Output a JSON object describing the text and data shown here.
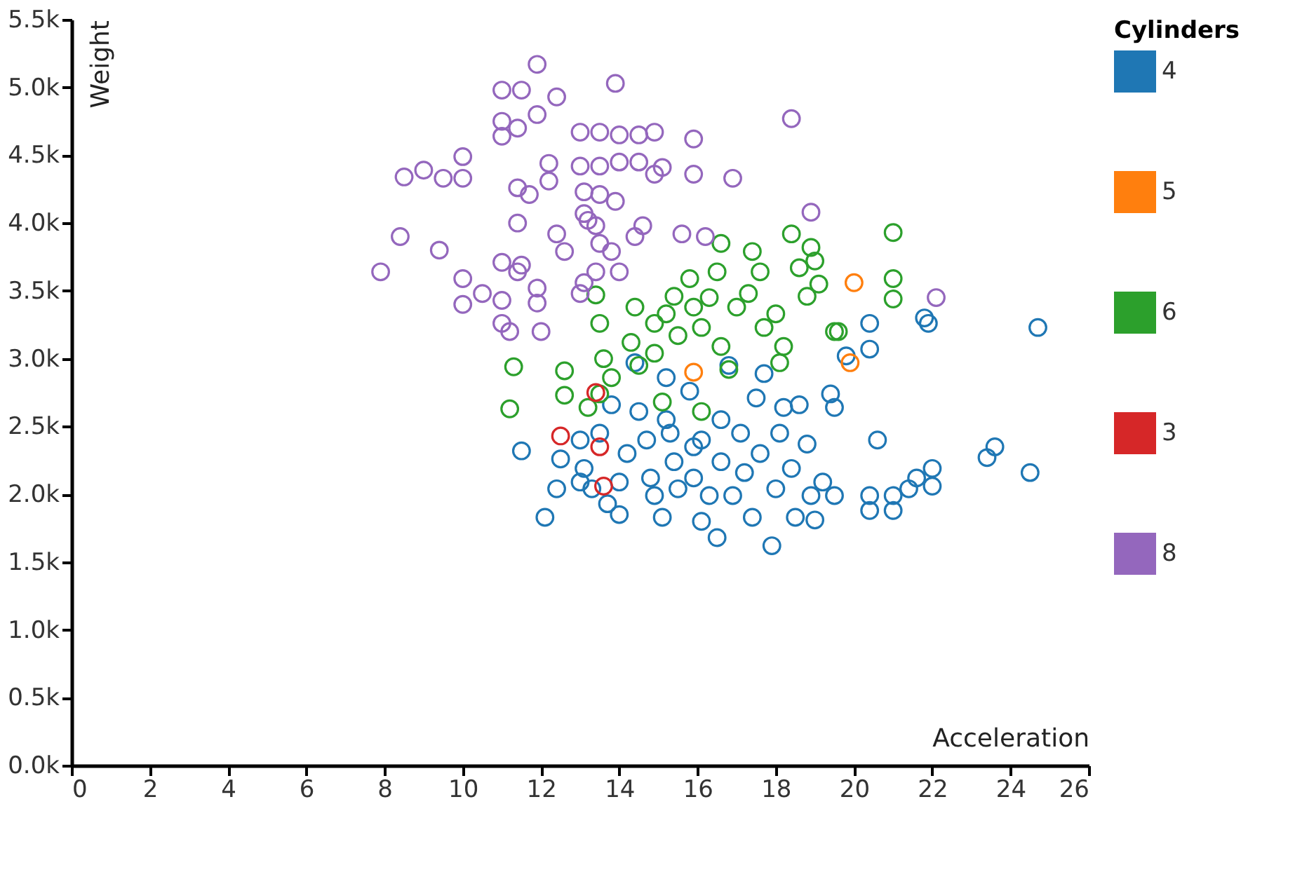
{
  "chart_data": {
    "type": "scatter",
    "xlabel": "Acceleration",
    "ylabel": "Weight",
    "legend_title": "Cylinders",
    "legend": "top right",
    "grid": false,
    "marker": "circle",
    "xlim": [
      0,
      26
    ],
    "xticks": [
      0,
      2,
      4,
      6,
      8,
      10,
      12,
      14,
      16,
      18,
      20,
      22,
      24,
      26
    ],
    "ylim": [
      0,
      5500
    ],
    "yticks": [
      {
        "value": 0,
        "label": "0.0k"
      },
      {
        "value": 500,
        "label": "0.5k"
      },
      {
        "value": 1000,
        "label": "1.0k"
      },
      {
        "value": 1500,
        "label": "1.5k"
      },
      {
        "value": 2000,
        "label": "2.0k"
      },
      {
        "value": 2500,
        "label": "2.5k"
      },
      {
        "value": 3000,
        "label": "3.0k"
      },
      {
        "value": 3500,
        "label": "3.5k"
      },
      {
        "value": 4000,
        "label": "4.0k"
      },
      {
        "value": 4500,
        "label": "4.5k"
      },
      {
        "value": 5000,
        "label": "5.0k"
      },
      {
        "value": 5500,
        "label": "5.5k"
      }
    ],
    "series": [
      {
        "name": "4",
        "color": "#1f77b4",
        "x": [
          11.5,
          12.1,
          12.5,
          12.4,
          13.0,
          13.1,
          13.7,
          14.0,
          14.0,
          14.2,
          14.4,
          14.5,
          14.7,
          14.8,
          14.9,
          15.1,
          15.2,
          15.3,
          15.4,
          15.5,
          15.8,
          15.9,
          15.9,
          16.1,
          16.3,
          16.5,
          16.6,
          16.6,
          16.8,
          16.9,
          17.1,
          17.2,
          17.4,
          17.5,
          17.6,
          17.7,
          17.9,
          18.0,
          18.1,
          18.2,
          18.4,
          18.5,
          18.6,
          18.8,
          18.9,
          19.0,
          19.2,
          19.4,
          19.5,
          19.5,
          19.8,
          20.4,
          20.4,
          20.4,
          20.6,
          20.4,
          21.0,
          21.0,
          21.4,
          21.6,
          21.8,
          21.9,
          22.0,
          22.0,
          23.4,
          23.6,
          24.5,
          24.7,
          13.5,
          13.8,
          15.2,
          16.1,
          13.3,
          13.0
        ],
        "values": [
          2320,
          1830,
          2260,
          2040,
          2400,
          2190,
          1930,
          2090,
          1850,
          2300,
          2970,
          2610,
          2400,
          2120,
          1990,
          1830,
          2860,
          2450,
          2240,
          2040,
          2760,
          2350,
          2120,
          1800,
          1990,
          1680,
          2550,
          2240,
          2950,
          1990,
          2450,
          2160,
          1830,
          2710,
          2300,
          2890,
          1620,
          2040,
          2450,
          2640,
          2190,
          1830,
          2660,
          2370,
          1990,
          1810,
          2090,
          2740,
          1990,
          2640,
          3020,
          3260,
          1880,
          1990,
          2400,
          3070,
          1880,
          1990,
          2040,
          2120,
          3300,
          3260,
          2190,
          2060,
          2270,
          2350,
          2160,
          3230,
          2450,
          2660,
          2550,
          2400,
          2040,
          2090
        ]
      },
      {
        "name": "5",
        "color": "#ff7f0e",
        "x": [
          20.0,
          19.9,
          15.9
        ],
        "values": [
          3560,
          2970,
          2900
        ]
      },
      {
        "name": "6",
        "color": "#2ca02c",
        "x": [
          11.3,
          11.2,
          12.6,
          12.6,
          13.2,
          13.5,
          13.4,
          13.5,
          13.6,
          13.8,
          14.3,
          14.4,
          14.5,
          14.9,
          14.9,
          15.2,
          15.4,
          15.5,
          15.8,
          15.9,
          16.1,
          16.3,
          16.5,
          16.6,
          16.6,
          16.8,
          17.0,
          17.3,
          17.4,
          17.6,
          17.7,
          18.0,
          18.1,
          18.2,
          18.4,
          18.6,
          18.8,
          18.9,
          19.0,
          19.1,
          19.5,
          19.6,
          21.0,
          21.0,
          21.0,
          15.1,
          16.1
        ],
        "values": [
          2940,
          2630,
          2910,
          2730,
          2640,
          2740,
          3470,
          3260,
          3000,
          2860,
          3120,
          3380,
          2950,
          3040,
          3260,
          3330,
          3460,
          3170,
          3590,
          3380,
          3230,
          3450,
          3640,
          3850,
          3090,
          2920,
          3380,
          3480,
          3790,
          3640,
          3230,
          3330,
          2970,
          3090,
          3920,
          3670,
          3460,
          3820,
          3720,
          3550,
          3200,
          3200,
          3930,
          3590,
          3440,
          2680,
          2610
        ]
      },
      {
        "name": "3",
        "color": "#d62728",
        "x": [
          12.5,
          13.5,
          13.6,
          13.4
        ],
        "values": [
          2430,
          2350,
          2060,
          2750
        ]
      },
      {
        "name": "8",
        "color": "#9467bd",
        "x": [
          11.9,
          11.0,
          11.5,
          12.4,
          13.9,
          11.0,
          11.0,
          11.4,
          11.9,
          14.9,
          18.4,
          13.0,
          13.5,
          14.0,
          14.5,
          8.5,
          9.0,
          9.5,
          10.0,
          10.0,
          15.9,
          16.9,
          15.9,
          11.4,
          11.7,
          12.2,
          12.2,
          13.0,
          13.5,
          14.0,
          14.5,
          13.1,
          13.5,
          13.9,
          14.9,
          15.1,
          18.9,
          14.4,
          14.6,
          15.6,
          16.2,
          13.1,
          13.2,
          13.4,
          12.4,
          12.6,
          11.4,
          8.4,
          7.9,
          9.4,
          10.0,
          10.0,
          11.0,
          11.4,
          11.5,
          10.5,
          11.0,
          11.9,
          11.9,
          11.0,
          11.2,
          12.0,
          13.0,
          13.1,
          13.5,
          13.8,
          13.4,
          14.0,
          22.1
        ],
        "values": [
          5170,
          4980,
          4980,
          4930,
          5030,
          4750,
          4640,
          4700,
          4800,
          4670,
          4770,
          4670,
          4670,
          4650,
          4650,
          4340,
          4390,
          4330,
          4330,
          4490,
          4360,
          4330,
          4620,
          4260,
          4210,
          4440,
          4310,
          4420,
          4420,
          4450,
          4450,
          4230,
          4210,
          4160,
          4360,
          4410,
          4080,
          3900,
          3980,
          3920,
          3900,
          4070,
          4020,
          3980,
          3920,
          3790,
          4000,
          3900,
          3640,
          3800,
          3590,
          3400,
          3710,
          3640,
          3690,
          3480,
          3430,
          3520,
          3410,
          3260,
          3200,
          3200,
          3480,
          3560,
          3850,
          3790,
          3640,
          3640,
          3450
        ]
      }
    ]
  }
}
